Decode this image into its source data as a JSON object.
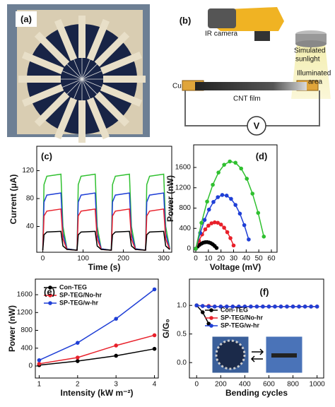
{
  "panel_a": {
    "label": "(a)"
  },
  "panel_b": {
    "label": "(b)",
    "camera": "IR camera",
    "sunlight": [
      "Simulated",
      "sunlight"
    ],
    "cu": "Cu",
    "film": "CNT film",
    "area": [
      "Illuminated",
      "area"
    ],
    "meter": "V"
  },
  "chart_data": [
    {
      "type": "line",
      "panel": "(c)",
      "x_label": "Time (s)",
      "y_label": "Current (μA)",
      "markers": false,
      "xlim": [
        -15,
        320
      ],
      "ylim": [
        3,
        155
      ],
      "xticks": [
        0,
        100,
        200,
        300
      ],
      "yticks": [
        40,
        80,
        120
      ],
      "x": [
        0,
        3,
        10,
        45,
        50,
        60,
        83,
        85,
        88,
        95,
        130,
        135,
        145,
        168,
        170,
        173,
        180,
        215,
        220,
        230,
        253,
        255,
        258,
        265,
        300,
        305,
        315
      ],
      "series": [
        {
          "color": "#2fc02f",
          "values": [
            6,
            100,
            112,
            115,
            40,
            8,
            6,
            6,
            100,
            112,
            115,
            40,
            8,
            6,
            6,
            100,
            112,
            115,
            40,
            8,
            6,
            6,
            100,
            112,
            115,
            40,
            8
          ]
        },
        {
          "color": "#1f3fd6",
          "values": [
            6,
            75,
            85,
            88,
            30,
            8,
            6,
            6,
            75,
            85,
            88,
            30,
            8,
            6,
            6,
            75,
            85,
            88,
            30,
            8,
            6,
            6,
            75,
            85,
            88,
            30,
            8
          ]
        },
        {
          "color": "#e8202a",
          "values": [
            6,
            55,
            62,
            65,
            22,
            7,
            6,
            6,
            55,
            62,
            65,
            22,
            7,
            6,
            6,
            55,
            62,
            65,
            22,
            7,
            6,
            6,
            55,
            62,
            65,
            22,
            7
          ]
        },
        {
          "color": "#000000",
          "values": [
            6,
            28,
            32,
            33,
            12,
            7,
            6,
            6,
            28,
            32,
            33,
            12,
            7,
            6,
            6,
            28,
            32,
            33,
            12,
            7,
            6,
            6,
            28,
            32,
            33,
            12,
            7
          ]
        }
      ]
    },
    {
      "type": "line",
      "panel": "(d)",
      "x_label": "Voltage (mV)",
      "y_label": "Power (nW)",
      "markers": true,
      "xlim": [
        -1.7,
        64.5
      ],
      "ylim": [
        -70,
        2045
      ],
      "xticks": [
        0,
        10,
        20,
        30,
        40,
        50,
        60
      ],
      "yticks": [
        0,
        400,
        800,
        1200,
        1600
      ],
      "series": [
        {
          "color": "#000000",
          "x": [
            0,
            1.5,
            3,
            4.5,
            6,
            7.5,
            9,
            10.5,
            12,
            13.5,
            15,
            16.5
          ],
          "values": [
            0,
            42,
            76,
            101,
            119,
            128,
            130,
            123,
            108,
            85,
            54,
            15
          ]
        },
        {
          "color": "#e8202a",
          "x": [
            0,
            2.5,
            5,
            7.5,
            10,
            12.5,
            15,
            17.5,
            20,
            22.5,
            25,
            27.5,
            30
          ],
          "values": [
            0,
            154,
            281,
            381,
            454,
            500,
            519,
            511,
            476,
            414,
            325,
            208,
            64
          ]
        },
        {
          "color": "#1f3fd6",
          "x": [
            0,
            3.5,
            7,
            10.5,
            14,
            17.5,
            21,
            24.5,
            28,
            31.5,
            35,
            38.5,
            42
          ],
          "values": [
            0,
            310,
            567,
            770,
            920,
            1015,
            1058,
            1046,
            981,
            862,
            691,
            464,
            182
          ]
        },
        {
          "color": "#2fc02f",
          "x": [
            0,
            4.5,
            9,
            13.5,
            18,
            22.5,
            27,
            31.5,
            36,
            40.5,
            45,
            49.5,
            54
          ],
          "values": [
            0,
            509,
            928,
            1259,
            1500,
            1653,
            1718,
            1693,
            1579,
            1378,
            1084,
            705,
            239
          ]
        }
      ]
    },
    {
      "type": "line",
      "panel": "(e)",
      "x_label": "Intensity (kW m⁻²)",
      "y_label": "Power (nW)",
      "markers": true,
      "legend": "upper left",
      "xlim": [
        0.9,
        4.1
      ],
      "ylim": [
        -270,
        1950
      ],
      "xticks": [
        1,
        2,
        3,
        4
      ],
      "yticks": [
        0,
        400,
        800,
        1200,
        1600
      ],
      "x": [
        1,
        2,
        3,
        4
      ],
      "series": [
        {
          "name": "Con-TEG",
          "color": "#000000",
          "values": [
            20,
            110,
            230,
            385
          ]
        },
        {
          "name": "SP-TEG/No-hr",
          "color": "#e8202a",
          "values": [
            50,
            190,
            460,
            690
          ]
        },
        {
          "name": "SP-TEG/w-hr",
          "color": "#1f3fd6",
          "values": [
            130,
            520,
            1060,
            1720
          ]
        }
      ]
    },
    {
      "type": "line",
      "panel": "(f)",
      "x_label": "Bending cycles",
      "y_label": "G/G₀",
      "markers": true,
      "legend": "center left",
      "xlim": [
        -60,
        1055
      ],
      "ylim": [
        -0.27,
        1.46
      ],
      "xticks": [
        0,
        200,
        400,
        600,
        800,
        1000
      ],
      "yticks": [
        {
          "value": 0,
          "label": "0.0"
        },
        {
          "value": 0.5,
          "label": "0.5"
        },
        {
          "value": 1,
          "label": "1.0"
        }
      ],
      "series": [
        {
          "name": "Con-TEG",
          "color": "#000000",
          "x": [
            0,
            50,
            100
          ],
          "values": [
            1,
            0.88,
            0.68
          ]
        },
        {
          "name": "SP-TEG/No-hr",
          "color": "#e8202a",
          "x": [
            0,
            50,
            100,
            150,
            200,
            250,
            300,
            350,
            400,
            450,
            500,
            550,
            600,
            650,
            700,
            750,
            800,
            850,
            900,
            950,
            1000
          ],
          "values": [
            1,
            0.99,
            0.99,
            0.98,
            0.98,
            0.98,
            0.98,
            0.98,
            0.98,
            0.98,
            0.98,
            0.98,
            0.98,
            0.98,
            0.98,
            0.98,
            0.98,
            0.98,
            0.98,
            0.98,
            0.98
          ]
        },
        {
          "name": "SP-TEG/w-hr",
          "color": "#1f3fd6",
          "x": [
            0,
            50,
            100,
            150,
            200,
            250,
            300,
            350,
            400,
            450,
            500,
            550,
            600,
            650,
            700,
            750,
            800,
            850,
            900,
            950,
            1000
          ],
          "values": [
            1,
            0.99,
            0.98,
            0.98,
            0.98,
            0.98,
            0.98,
            0.98,
            0.98,
            0.98,
            0.98,
            0.98,
            0.98,
            0.98,
            0.98,
            0.98,
            0.98,
            0.98,
            0.98,
            0.98,
            0.98
          ]
        }
      ]
    }
  ]
}
